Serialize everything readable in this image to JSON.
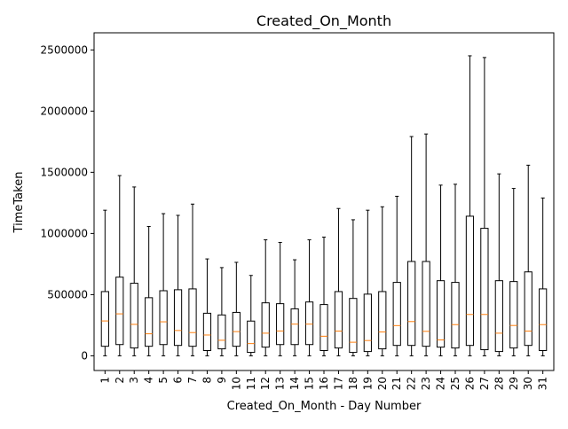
{
  "chart_data": {
    "type": "box",
    "title": "Created_On_Month",
    "xlabel": "Created_On_Month - Day Number",
    "ylabel": "TimeTaken",
    "ylim": [
      -120000,
      2640000
    ],
    "yticks": [
      0,
      500000,
      1000000,
      1500000,
      2000000,
      2500000
    ],
    "ytick_labels": [
      "0",
      "500000",
      "1000000",
      "1500000",
      "2000000",
      "2500000"
    ],
    "categories": [
      "1",
      "2",
      "3",
      "4",
      "5",
      "6",
      "7",
      "8",
      "9",
      "10",
      "11",
      "12",
      "13",
      "14",
      "15",
      "16",
      "17",
      "18",
      "19",
      "20",
      "21",
      "22",
      "23",
      "24",
      "25",
      "26",
      "27",
      "28",
      "29",
      "30",
      "31"
    ],
    "boxes": [
      {
        "whislo": 0,
        "q1": 78000,
        "med": 285000,
        "q3": 525000,
        "whishi": 1190000
      },
      {
        "whislo": 0,
        "q1": 92000,
        "med": 343000,
        "q3": 643000,
        "whishi": 1473000
      },
      {
        "whislo": 0,
        "q1": 64000,
        "med": 257000,
        "q3": 593000,
        "whishi": 1380000
      },
      {
        "whislo": 0,
        "q1": 78000,
        "med": 180000,
        "q3": 475000,
        "whishi": 1057000
      },
      {
        "whislo": 0,
        "q1": 92000,
        "med": 278000,
        "q3": 532000,
        "whishi": 1162000
      },
      {
        "whislo": 0,
        "q1": 85000,
        "med": 207000,
        "q3": 540000,
        "whishi": 1148000
      },
      {
        "whislo": 0,
        "q1": 78000,
        "med": 190000,
        "q3": 547000,
        "whishi": 1240000
      },
      {
        "whislo": 0,
        "q1": 43000,
        "med": 170000,
        "q3": 348000,
        "whishi": 792000
      },
      {
        "whislo": 0,
        "q1": 57000,
        "med": 127000,
        "q3": 334000,
        "whishi": 721000
      },
      {
        "whislo": 0,
        "q1": 78000,
        "med": 198000,
        "q3": 355000,
        "whishi": 764000
      },
      {
        "whislo": 0,
        "q1": 28000,
        "med": 100000,
        "q3": 284000,
        "whishi": 657000
      },
      {
        "whislo": 0,
        "q1": 71000,
        "med": 185000,
        "q3": 433000,
        "whishi": 948000
      },
      {
        "whislo": 0,
        "q1": 92000,
        "med": 203000,
        "q3": 426000,
        "whishi": 927000
      },
      {
        "whislo": 0,
        "q1": 92000,
        "med": 259000,
        "q3": 384000,
        "whishi": 785000
      },
      {
        "whislo": 0,
        "q1": 92000,
        "med": 259000,
        "q3": 440000,
        "whishi": 948000
      },
      {
        "whislo": 0,
        "q1": 43000,
        "med": 160000,
        "q3": 419000,
        "whishi": 970000
      },
      {
        "whislo": 0,
        "q1": 64000,
        "med": 202000,
        "q3": 525000,
        "whishi": 1204000
      },
      {
        "whislo": 0,
        "q1": 28000,
        "med": 111000,
        "q3": 469000,
        "whishi": 1112000
      },
      {
        "whislo": 0,
        "q1": 35000,
        "med": 125000,
        "q3": 504000,
        "whishi": 1190000
      },
      {
        "whislo": 0,
        "q1": 57000,
        "med": 195000,
        "q3": 525000,
        "whishi": 1218000
      },
      {
        "whislo": 0,
        "q1": 85000,
        "med": 247000,
        "q3": 600000,
        "whishi": 1304000
      },
      {
        "whislo": 0,
        "q1": 85000,
        "med": 280000,
        "q3": 771000,
        "whishi": 1792000
      },
      {
        "whislo": 0,
        "q1": 78000,
        "med": 200000,
        "q3": 771000,
        "whishi": 1813000
      },
      {
        "whislo": 0,
        "q1": 71000,
        "med": 130000,
        "q3": 614000,
        "whishi": 1395000
      },
      {
        "whislo": 0,
        "q1": 64000,
        "med": 255000,
        "q3": 600000,
        "whishi": 1402000
      },
      {
        "whislo": 0,
        "q1": 85000,
        "med": 338000,
        "q3": 1141000,
        "whishi": 2452000
      },
      {
        "whislo": 0,
        "q1": 50000,
        "med": 338000,
        "q3": 1042000,
        "whishi": 2438000
      },
      {
        "whislo": 0,
        "q1": 35000,
        "med": 185000,
        "q3": 614000,
        "whishi": 1487000
      },
      {
        "whislo": 0,
        "q1": 64000,
        "med": 248000,
        "q3": 607000,
        "whishi": 1368000
      },
      {
        "whislo": 0,
        "q1": 85000,
        "med": 202000,
        "q3": 686000,
        "whishi": 1558000
      },
      {
        "whislo": 0,
        "q1": 43000,
        "med": 255000,
        "q3": 547000,
        "whishi": 1290000
      }
    ],
    "colors": {
      "box": "#000000",
      "median": "#ff7f0e",
      "whisker": "#000000"
    },
    "grid": false,
    "legend": "none"
  }
}
